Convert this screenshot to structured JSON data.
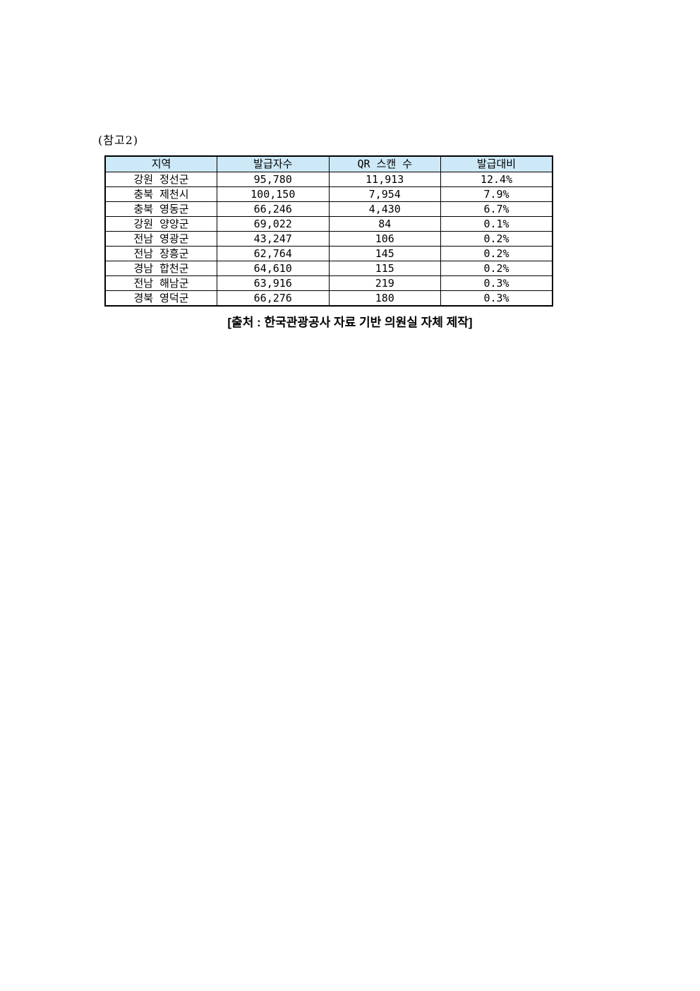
{
  "page": {
    "note_label": "(참고2)",
    "source_line": "[출처 : 한국관광공사 자료 기반 의원실 자체 제작]"
  },
  "colors": {
    "header_bg": "#cde9f8",
    "border": "#000000",
    "text": "#000000",
    "page_bg": "#ffffff"
  },
  "chart_data": {
    "type": "table",
    "title": "(참고2)",
    "source": "[출처 : 한국관광공사 자료 기반 의원실 자체 제작]",
    "headers": [
      "지역",
      "발급자수",
      "QR 스캔 수",
      "발급대비"
    ],
    "rows": [
      [
        "강원 정선군",
        "95,780",
        "11,913",
        "12.4%"
      ],
      [
        "충북 제천시",
        "100,150",
        "7,954",
        "7.9%"
      ],
      [
        "충북 영동군",
        "66,246",
        "4,430",
        "6.7%"
      ],
      [
        "강원 양양군",
        "69,022",
        "84",
        "0.1%"
      ],
      [
        "전남 영광군",
        "43,247",
        "106",
        "0.2%"
      ],
      [
        "전남 장흥군",
        "62,764",
        "145",
        "0.2%"
      ],
      [
        "경남 합천군",
        "64,610",
        "115",
        "0.2%"
      ],
      [
        "전남 해남군",
        "63,916",
        "219",
        "0.3%"
      ],
      [
        "경북 영덕군",
        "66,276",
        "180",
        "0.3%"
      ]
    ]
  }
}
